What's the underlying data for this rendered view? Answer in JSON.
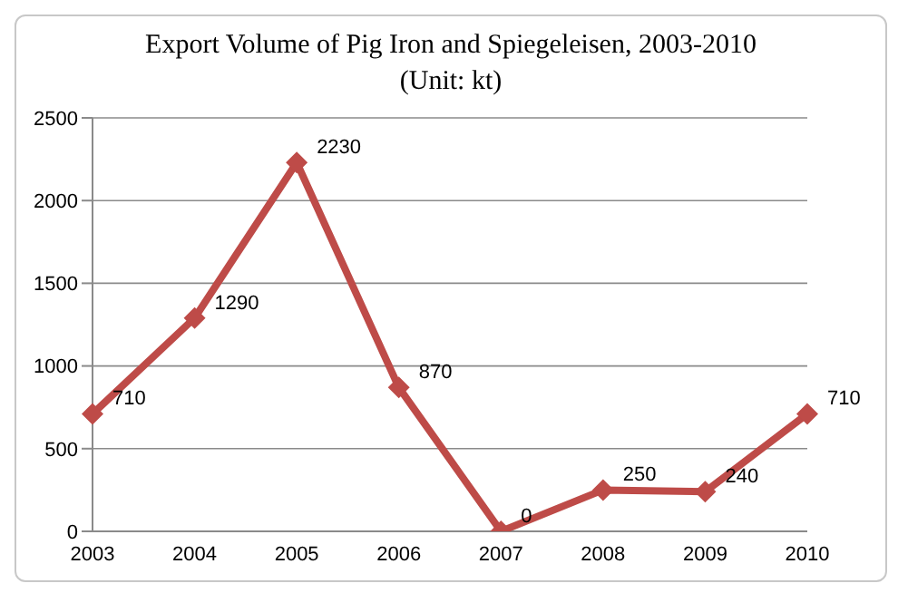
{
  "chart_data": {
    "type": "line",
    "title": "Export Volume of Pig Iron and Spiegeleisen, 2003-2010",
    "subtitle": "(Unit: kt)",
    "categories": [
      "2003",
      "2004",
      "2005",
      "2006",
      "2007",
      "2008",
      "2009",
      "2010"
    ],
    "series": [
      {
        "color": "#be4b48",
        "values": [
          710,
          1290,
          2230,
          870,
          0,
          250,
          240,
          710
        ]
      }
    ],
    "ylim": [
      0,
      2500
    ],
    "yticks": [
      0,
      500,
      1000,
      1500,
      2000,
      2500
    ],
    "grid": "y",
    "marker": "diamond",
    "line_style": "solid",
    "data_labels": true,
    "legend": false
  }
}
